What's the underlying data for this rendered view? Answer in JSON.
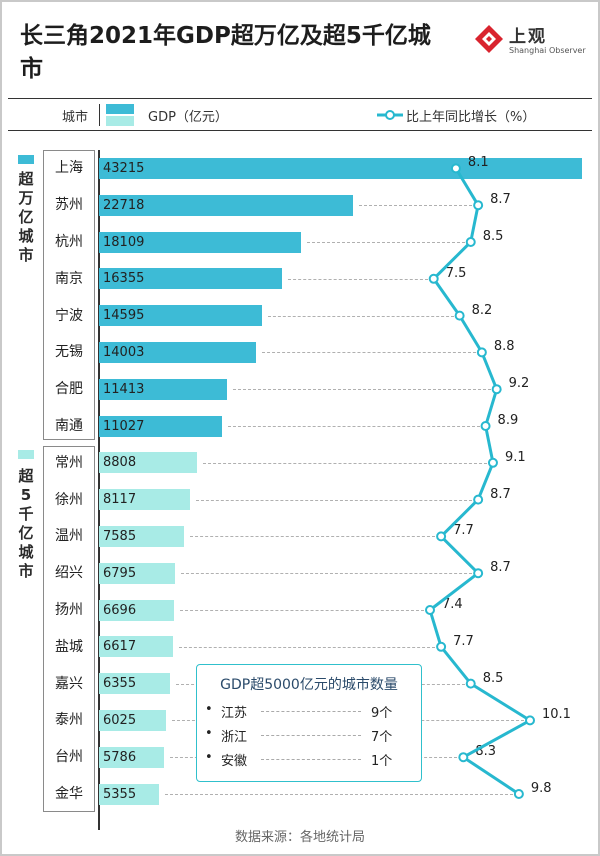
{
  "title": "长三角2021年GDP超万亿及超5千亿城市",
  "logo": {
    "name": "上观",
    "sub": "Shanghai Observer"
  },
  "legend": {
    "city": "城市",
    "gdp": "GDP（亿元）",
    "growth": "比上年同比增长（%）"
  },
  "groups": [
    {
      "label": "超万亿城市",
      "color": "#3dbbd6"
    },
    {
      "label": "超5千亿城市",
      "color": "#a8ebe6"
    }
  ],
  "colors": {
    "bar_top": "#3dbbd6",
    "bar_bottom": "#a8ebe6",
    "line": "#27b8cf"
  },
  "chart_data": {
    "type": "bar",
    "categories": [
      "上海",
      "苏州",
      "杭州",
      "南京",
      "宁波",
      "无锡",
      "合肥",
      "南通",
      "常州",
      "徐州",
      "温州",
      "绍兴",
      "扬州",
      "盐城",
      "嘉兴",
      "泰州",
      "台州",
      "金华"
    ],
    "series": [
      {
        "name": "GDP（亿元）",
        "values": [
          43215,
          22718,
          18109,
          16355,
          14595,
          14003,
          11413,
          11027,
          8808,
          8117,
          7585,
          6795,
          6696,
          6617,
          6355,
          6025,
          5786,
          5355
        ]
      },
      {
        "name": "比上年同比增长（%）",
        "type": "line",
        "values": [
          8.1,
          8.7,
          8.5,
          7.5,
          8.2,
          8.8,
          9.2,
          8.9,
          9.1,
          8.7,
          7.7,
          8.7,
          7.4,
          7.7,
          8.5,
          10.1,
          8.3,
          9.8
        ]
      }
    ],
    "group_size": 8
  },
  "bar_values": [
    "43215",
    "22718",
    "18109",
    "16355",
    "14595",
    "14003",
    "11413",
    "11027",
    "8808",
    "8117",
    "7585",
    "6795",
    "6696",
    "6617",
    "6355",
    "6025",
    "5786",
    "5355"
  ],
  "growth_labels": [
    "8.1",
    "8.7",
    "8.5",
    "7.5",
    "8.2",
    "8.8",
    "9.2",
    "8.9",
    "9.1",
    "8.7",
    "7.7",
    "8.7",
    "7.4",
    "7.7",
    "8.5",
    "10.1",
    "8.3",
    "9.8"
  ],
  "inset": {
    "title": "GDP超5000亿元的城市数量",
    "rows": [
      {
        "bullet": "•",
        "province": "江苏",
        "count": "9个"
      },
      {
        "bullet": "•",
        "province": "浙江",
        "count": "7个"
      },
      {
        "bullet": "•",
        "province": "安徽",
        "count": "1个"
      }
    ]
  },
  "source": "数据来源：各地统计局"
}
